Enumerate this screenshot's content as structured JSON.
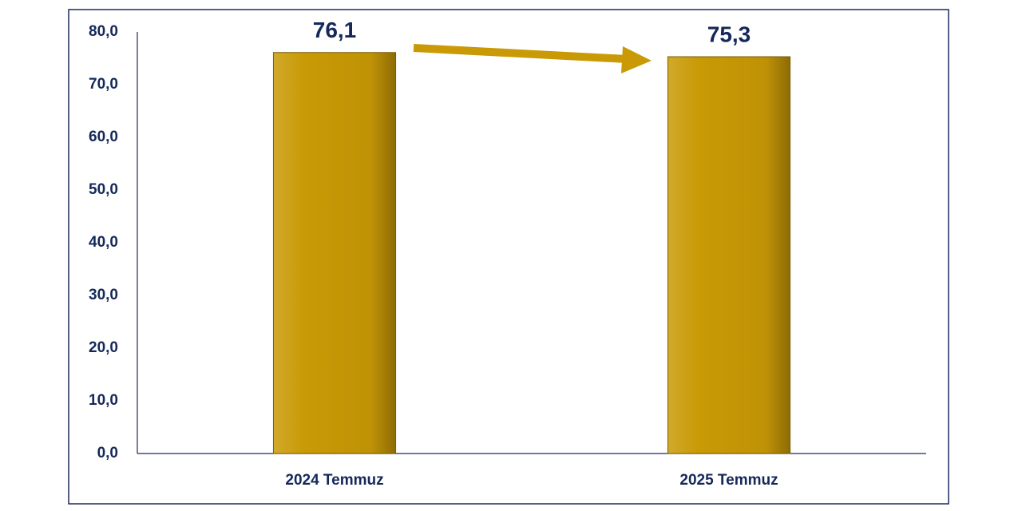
{
  "chart_data": {
    "type": "bar",
    "categories": [
      "2024 Temmuz",
      "2025 Temmuz"
    ],
    "values": [
      76.1,
      75.3
    ],
    "value_labels": [
      "76,1",
      "75,3"
    ],
    "color": "#c99a06",
    "ylim": [
      0,
      80
    ],
    "yticks": [
      {
        "value": 0,
        "label": "0,0"
      },
      {
        "value": 10,
        "label": "10,0"
      },
      {
        "value": 20,
        "label": "20,0"
      },
      {
        "value": 30,
        "label": "30,0"
      },
      {
        "value": 40,
        "label": "40,0"
      },
      {
        "value": 50,
        "label": "50,0"
      },
      {
        "value": 60,
        "label": "60,0"
      },
      {
        "value": 70,
        "label": "70,0"
      },
      {
        "value": 80,
        "label": "80,0"
      }
    ],
    "grid": false
  }
}
